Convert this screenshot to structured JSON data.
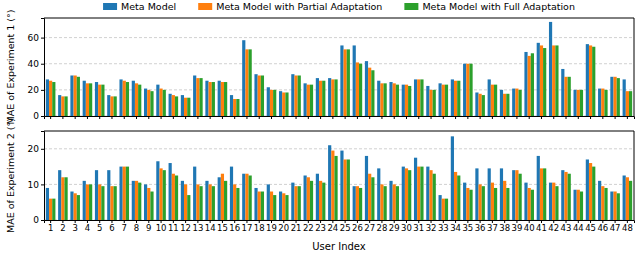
{
  "chart_data": [
    {
      "type": "bar",
      "y_label": "MAE of Experiment 1 (°)",
      "categories": [
        "1",
        "2",
        "3",
        "4",
        "5",
        "6",
        "7",
        "8",
        "9",
        "10",
        "11",
        "12",
        "13",
        "14",
        "15",
        "16",
        "17",
        "18",
        "19",
        "20",
        "21",
        "22",
        "23",
        "24",
        "25",
        "26",
        "27",
        "28",
        "29",
        "30",
        "31",
        "32",
        "33",
        "34",
        "35",
        "36",
        "37",
        "38",
        "39",
        "40",
        "41",
        "42",
        "43",
        "44",
        "45",
        "46",
        "47",
        "48"
      ],
      "ylim": [
        0,
        75
      ],
      "yticks": [
        0,
        20,
        40,
        60
      ],
      "grid": true,
      "legend": "top",
      "tick_labels": "y",
      "series": [
        {
          "name": "Meta Model",
          "color": "#1f77b4",
          "values": [
            28,
            16,
            31,
            27,
            26,
            16,
            28,
            27,
            21,
            24,
            17,
            16,
            31,
            27,
            27,
            16,
            58,
            32,
            22,
            19,
            32,
            25,
            29,
            29,
            54,
            54,
            42,
            27,
            26,
            24,
            28,
            23,
            25,
            28,
            40,
            18,
            28,
            20,
            21,
            49,
            56,
            72,
            36,
            20,
            55,
            21,
            30,
            28
          ]
        },
        {
          "name": "Meta Model with Partial Adaptation",
          "color": "#ff7f0e",
          "values": [
            27,
            15,
            31,
            25,
            24,
            15,
            27,
            25,
            20,
            21,
            16,
            14,
            29,
            26,
            26,
            13,
            51,
            31,
            20,
            18,
            31,
            24,
            27,
            28,
            51,
            41,
            37,
            25,
            25,
            24,
            28,
            20,
            24,
            27,
            40,
            17,
            24,
            17,
            21,
            46,
            54,
            54,
            30,
            20,
            54,
            21,
            30,
            19
          ]
        },
        {
          "name": "Meta Model with Full Adaptation",
          "color": "#2ca02c",
          "values": [
            26,
            15,
            30,
            25,
            24,
            15,
            26,
            24,
            19,
            20,
            15,
            14,
            29,
            26,
            26,
            13,
            51,
            31,
            20,
            18,
            31,
            24,
            27,
            28,
            51,
            40,
            35,
            25,
            24,
            23,
            28,
            20,
            24,
            27,
            40,
            16,
            24,
            17,
            20,
            48,
            52,
            54,
            30,
            20,
            53,
            20,
            29,
            19
          ]
        }
      ]
    },
    {
      "type": "bar",
      "y_label": "MAE of Experiment 2 (°)",
      "x_label": "User Index",
      "categories": [
        "1",
        "2",
        "3",
        "4",
        "5",
        "6",
        "7",
        "8",
        "9",
        "10",
        "11",
        "12",
        "13",
        "14",
        "15",
        "16",
        "17",
        "18",
        "19",
        "20",
        "21",
        "22",
        "23",
        "24",
        "25",
        "26",
        "27",
        "28",
        "29",
        "30",
        "31",
        "32",
        "33",
        "34",
        "35",
        "36",
        "37",
        "38",
        "39",
        "40",
        "41",
        "42",
        "43",
        "44",
        "45",
        "46",
        "47",
        "48"
      ],
      "ylim": [
        0,
        25
      ],
      "yticks": [
        0,
        10,
        20
      ],
      "grid": true,
      "series": [
        {
          "color": "#1f77b4",
          "values": [
            9,
            14,
            8,
            11,
            14,
            14,
            15,
            11,
            10,
            16.5,
            16,
            11,
            15,
            11,
            12,
            15,
            13,
            9,
            10,
            8,
            10.5,
            12.5,
            13,
            21,
            19.5,
            9.5,
            18,
            14.5,
            11,
            15,
            17.5,
            15,
            7,
            23.5,
            10.5,
            14.5,
            14.5,
            14.5,
            14,
            10.5,
            18,
            10.5,
            14,
            8.5,
            17,
            11,
            8,
            12.5
          ]
        },
        {
          "color": "#ff7f0e",
          "values": [
            6,
            12,
            7.5,
            10,
            10,
            9.5,
            15,
            11,
            9,
            14.5,
            13,
            10,
            10,
            10,
            13,
            10,
            13,
            8,
            8,
            7.5,
            9.5,
            12,
            11,
            19.5,
            17,
            9.5,
            13,
            10,
            10,
            14.5,
            15,
            14,
            6,
            13.5,
            9,
            10,
            10.5,
            11,
            14,
            9,
            14.5,
            10.5,
            13.5,
            8.5,
            16,
            9.5,
            8,
            12
          ]
        },
        {
          "color": "#2ca02c",
          "values": [
            6,
            12,
            7,
            10,
            9.5,
            9.5,
            15,
            10.5,
            8,
            14,
            12.5,
            7,
            9.5,
            9.5,
            11,
            9,
            12.5,
            8,
            7,
            7,
            9.5,
            11,
            10.5,
            18,
            17,
            9,
            12,
            9.5,
            9.5,
            14,
            15,
            13,
            6,
            12.5,
            8.5,
            9.5,
            9,
            9,
            13,
            8.5,
            14.5,
            9.5,
            13,
            8,
            15,
            9,
            7.5,
            11
          ]
        }
      ]
    }
  ]
}
